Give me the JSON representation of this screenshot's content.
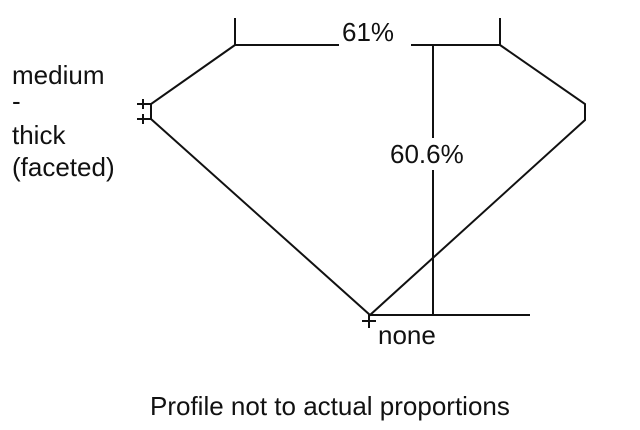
{
  "diagram": {
    "table_percent": "61%",
    "depth_percent": "60.6%",
    "girdle_label": [
      "medium",
      "-",
      "thick",
      "(faceted)"
    ],
    "culet_label": "none",
    "caption": "Profile not to actual proportions",
    "line_color": "#111111"
  }
}
